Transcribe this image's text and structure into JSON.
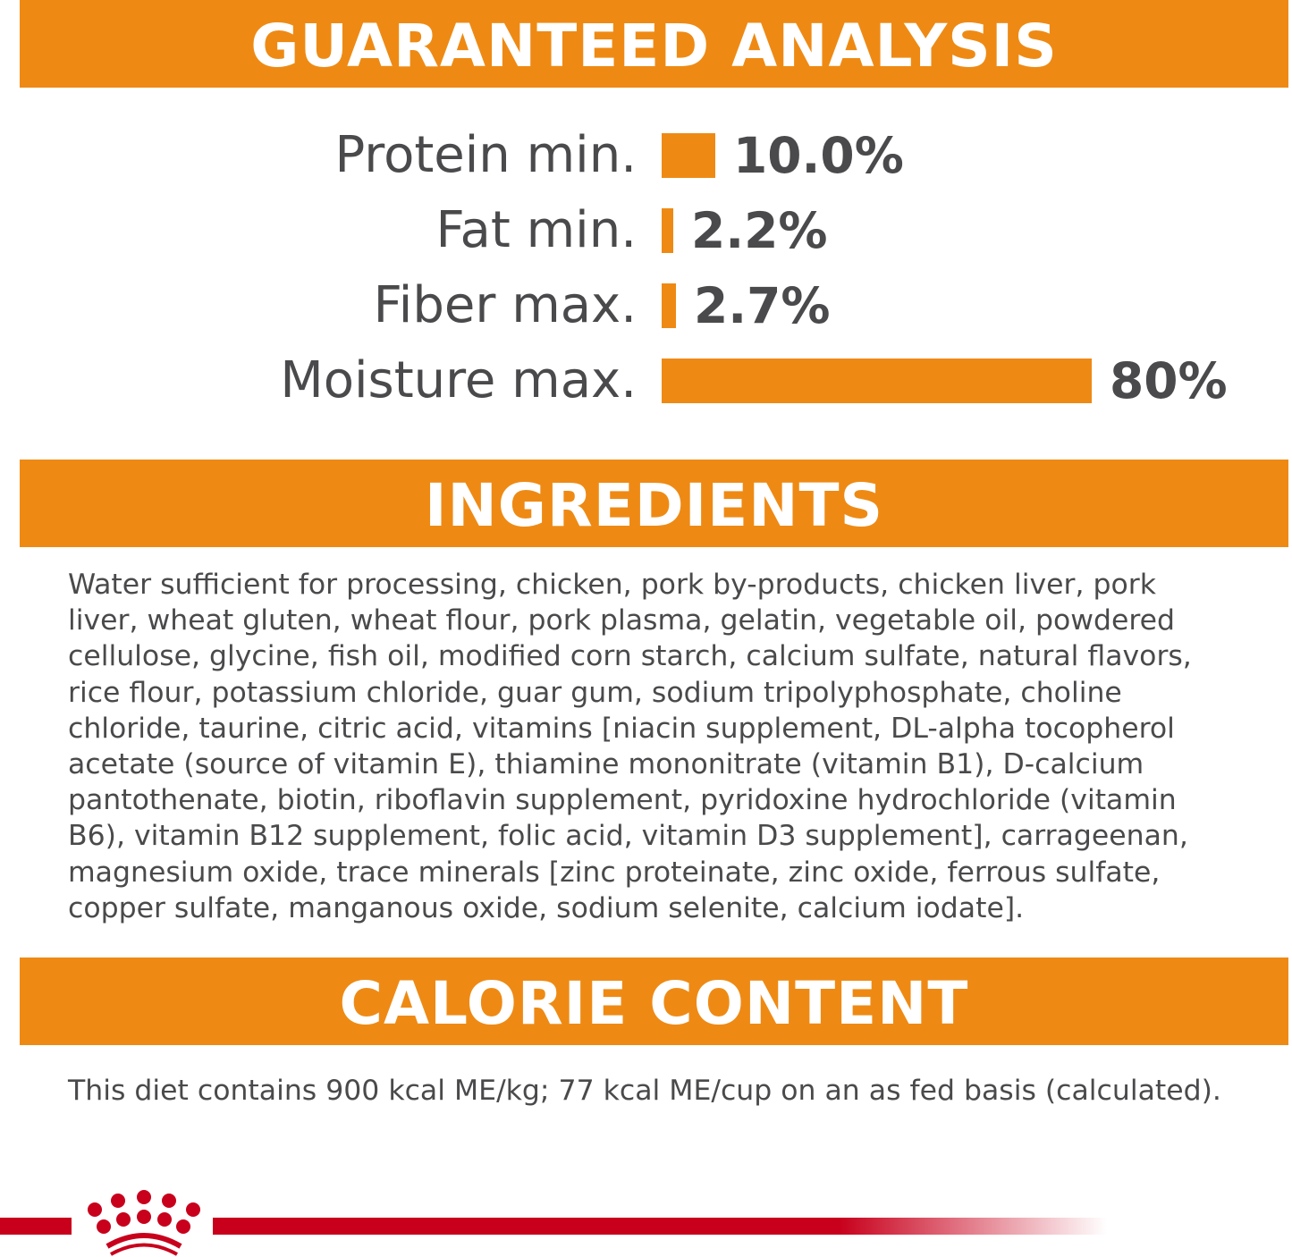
{
  "analysis": {
    "title": "GUARANTEED ANALYSIS",
    "rows": [
      {
        "label": "Protein min.",
        "value": "10.0%",
        "percent": 10.0
      },
      {
        "label": "Fat min.",
        "value": "2.2%",
        "percent": 2.2
      },
      {
        "label": "Fiber max.",
        "value": "2.7%",
        "percent": 2.7
      },
      {
        "label": "Moisture max.",
        "value": "80%",
        "percent": 80
      }
    ],
    "bar_color": "#ee8a14"
  },
  "ingredients": {
    "title": "INGREDIENTS",
    "lines": [
      "Water sufficient for processing, chicken, pork by-products, chicken liver, pork",
      "liver, wheat gluten, wheat flour, pork plasma, gelatin, vegetable oil, powdered",
      "cellulose, glycine, fish oil, modified corn starch, calcium sulfate, natural flavors,",
      "rice flour, potassium chloride, guar gum, sodium tripolyphosphate, choline",
      "chloride, taurine, citric acid, vitamins [niacin supplement, DL-alpha tocopherol",
      "acetate (source of vitamin E), thiamine mononitrate (vitamin B1), D-calcium",
      "pantothenate, biotin, riboflavin supplement, pyridoxine hydrochloride (vitamin",
      "B6), vitamin B12 supplement, folic acid, vitamin D3 supplement], carrageenan,",
      "magnesium oxide, trace minerals [zinc proteinate, zinc oxide, ferrous sulfate,",
      "copper sulfate, manganous oxide, sodium selenite, calcium iodate]."
    ]
  },
  "calorie": {
    "title": "CALORIE CONTENT",
    "text": "This diet contains 900 kcal ME/kg; 77 kcal ME/cup on an as fed basis (calculated)."
  },
  "footer": {
    "logo": "crown-logo",
    "color": "#c8001c"
  }
}
